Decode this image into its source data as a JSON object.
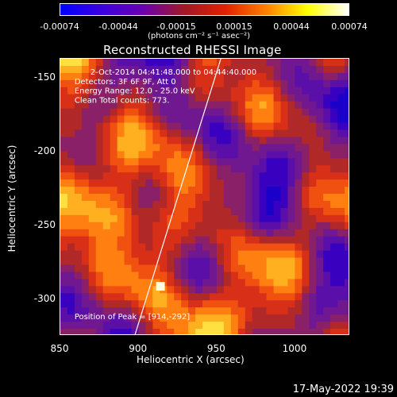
{
  "colorbar": {
    "colors": [
      "#0000ff",
      "#3c00e0",
      "#6a00b0",
      "#a01828",
      "#e02000",
      "#ff8000",
      "#ffff00",
      "#ffffff"
    ],
    "ticks": [
      "-0.00074",
      "-0.00044",
      "-0.00015",
      "0.00015",
      "0.00044",
      "0.00074"
    ],
    "unit": "(photons cm⁻² s⁻¹ asec⁻²)"
  },
  "chart_data": {
    "type": "heatmap",
    "title": "Reconstructed RHESSI Image",
    "xlabel": "Heliocentric X (arcsec)",
    "ylabel": "Heliocentric Y (arcsec)",
    "xlim": [
      850,
      1035
    ],
    "ylim": [
      -325,
      -137
    ],
    "xticks": [
      "850",
      "900",
      "950",
      "1000"
    ],
    "yticks": [
      "-150",
      "-200",
      "-250",
      "-300"
    ],
    "annotations": [
      "2-Oct-2014 04:41:48.000 to 04:44:40.000",
      "Detectors: 3F 6F 9F, Att 0",
      "Energy Range: 12.0 - 25.0 keV",
      "Clean    Total counts: 773.",
      "Position of Peak = [914,-292]"
    ],
    "peak": [
      914,
      -292
    ],
    "limb_line": [
      [
        898,
        -325
      ],
      [
        953,
        -137
      ]
    ]
  },
  "timestamp": "17-May-2022 19:39"
}
